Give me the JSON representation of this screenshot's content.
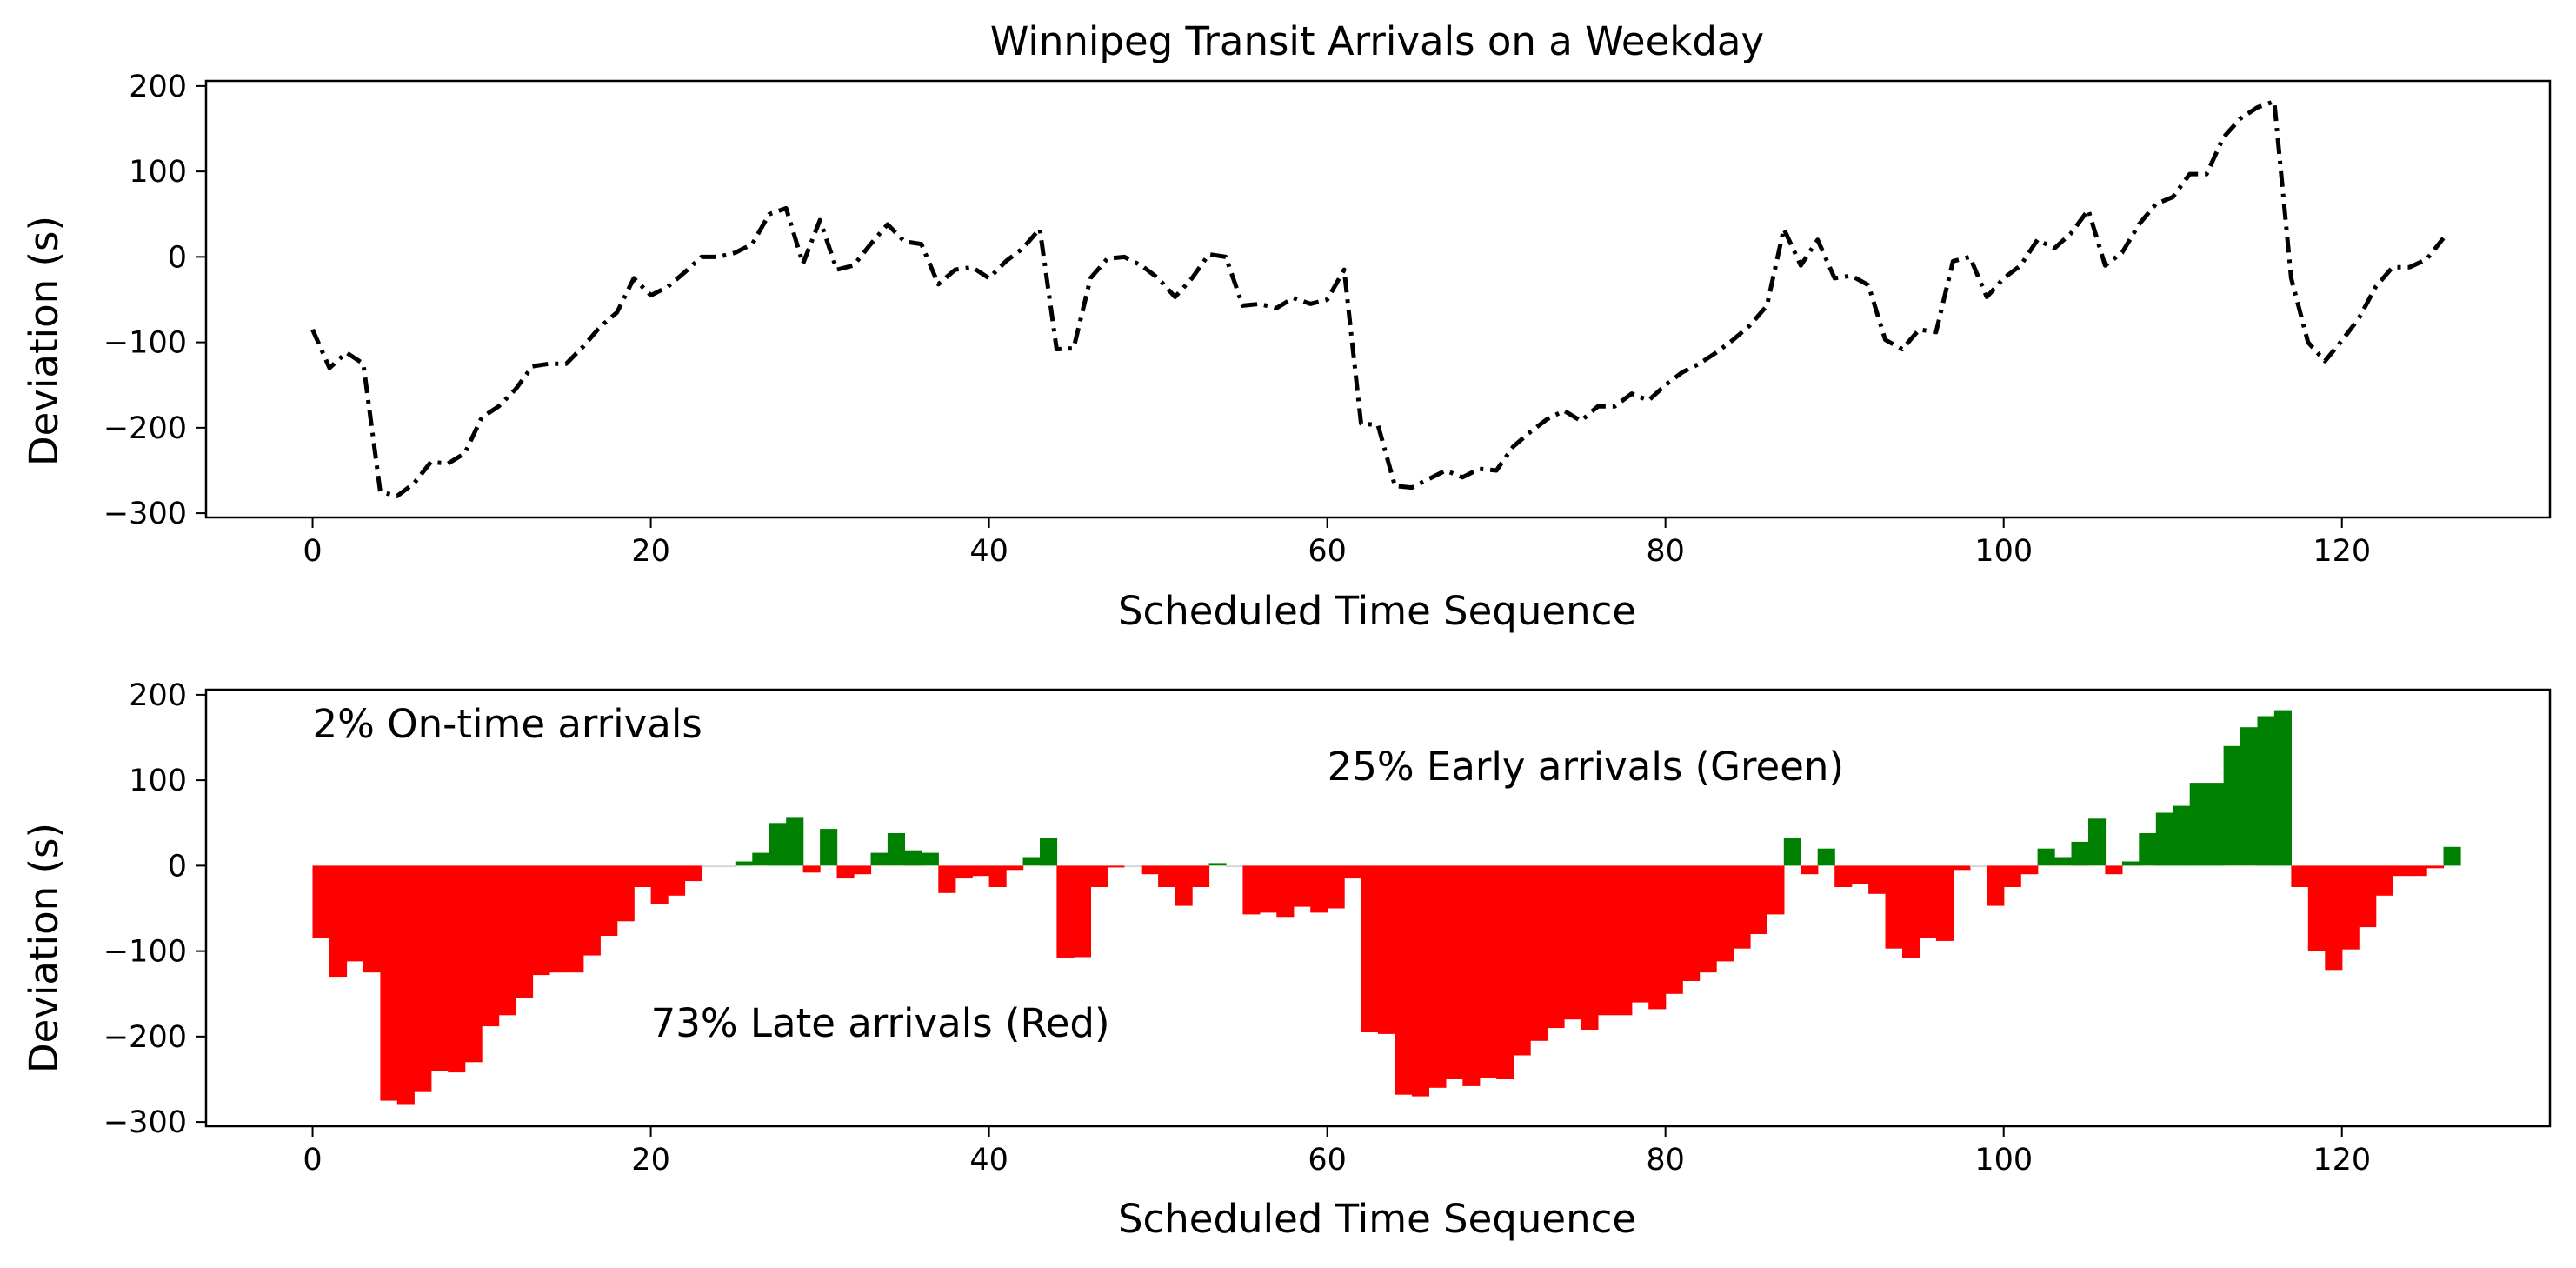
{
  "chart_data": [
    {
      "type": "line",
      "title": "Winnipeg Transit Arrivals on a Weekday",
      "xlabel": "Scheduled Time Sequence",
      "ylabel": "Deviation (s)",
      "xlim": [
        -6.3,
        132.3
      ],
      "ylim": [
        -305,
        206
      ],
      "xticks": [
        0,
        20,
        40,
        60,
        80,
        100,
        120
      ],
      "yticks": [
        -300,
        -200,
        -100,
        0,
        100,
        200
      ],
      "grid": false,
      "line_color": "#000000",
      "line_style": "dash-dot",
      "series": [
        {
          "values": [
            -85,
            -130,
            -112,
            -125,
            -275,
            -280,
            -265,
            -240,
            -242,
            -230,
            -188,
            -175,
            -155,
            -128,
            -125,
            -125,
            -105,
            -82,
            -65,
            -25,
            -45,
            -35,
            -18,
            0,
            0,
            5,
            15,
            50,
            57,
            -8,
            43,
            -15,
            -10,
            15,
            38,
            18,
            15,
            -32,
            -15,
            -12,
            -25,
            -5,
            10,
            33,
            -108,
            -107,
            -25,
            -2,
            0,
            -10,
            -25,
            -47,
            -25,
            3,
            0,
            -57,
            -55,
            -60,
            -48,
            -55,
            -50,
            -15,
            -195,
            -197,
            -268,
            -270,
            -260,
            -250,
            -258,
            -248,
            -250,
            -222,
            -205,
            -190,
            -180,
            -192,
            -175,
            -175,
            -160,
            -168,
            -150,
            -135,
            -125,
            -112,
            -97,
            -80,
            -57,
            33,
            -10,
            20,
            -25,
            -22,
            -33,
            -97,
            -108,
            -85,
            -88,
            -5,
            0,
            -47,
            -25,
            -10,
            20,
            10,
            28,
            55,
            -10,
            5,
            38,
            62,
            70,
            97,
            97,
            140,
            162,
            175,
            182,
            -25,
            -100,
            -122,
            -98,
            -72,
            -35,
            -12,
            -12,
            -3,
            22
          ]
        }
      ]
    },
    {
      "type": "bar",
      "xlabel": "Scheduled Time Sequence",
      "ylabel": "Deviation (s)",
      "xlim": [
        -6.3,
        132.3
      ],
      "ylim": [
        -305,
        206
      ],
      "xticks": [
        0,
        20,
        40,
        60,
        80,
        100,
        120
      ],
      "yticks": [
        -300,
        -200,
        -100,
        0,
        100,
        200
      ],
      "grid": false,
      "colors": {
        "late": "#ff0000",
        "early": "#008000",
        "on_time": "#cccccc"
      },
      "annotations": [
        {
          "id": "on-time",
          "text": "2% On-time arrivals",
          "x": 0,
          "y": 150
        },
        {
          "id": "early",
          "text": "25% Early arrivals (Green)",
          "x": 60,
          "y": 100
        },
        {
          "id": "late",
          "text": "73% Late arrivals (Red)",
          "x": 20,
          "y": -200
        }
      ],
      "series": [
        {
          "values": [
            -85,
            -130,
            -112,
            -125,
            -275,
            -280,
            -265,
            -240,
            -242,
            -230,
            -188,
            -175,
            -155,
            -128,
            -125,
            -125,
            -105,
            -82,
            -65,
            -25,
            -45,
            -35,
            -18,
            0,
            0,
            5,
            15,
            50,
            57,
            -8,
            43,
            -15,
            -10,
            15,
            38,
            18,
            15,
            -32,
            -15,
            -12,
            -25,
            -5,
            10,
            33,
            -108,
            -107,
            -25,
            -2,
            0,
            -10,
            -25,
            -47,
            -25,
            3,
            0,
            -57,
            -55,
            -60,
            -48,
            -55,
            -50,
            -15,
            -195,
            -197,
            -268,
            -270,
            -260,
            -250,
            -258,
            -248,
            -250,
            -222,
            -205,
            -190,
            -180,
            -192,
            -175,
            -175,
            -160,
            -168,
            -150,
            -135,
            -125,
            -112,
            -97,
            -80,
            -57,
            33,
            -10,
            20,
            -25,
            -22,
            -33,
            -97,
            -108,
            -85,
            -88,
            -5,
            0,
            -47,
            -25,
            -10,
            20,
            10,
            28,
            55,
            -10,
            5,
            38,
            62,
            70,
            97,
            97,
            140,
            162,
            175,
            182,
            -25,
            -100,
            -122,
            -98,
            -72,
            -35,
            -12,
            -12,
            -3,
            22
          ]
        }
      ]
    }
  ]
}
